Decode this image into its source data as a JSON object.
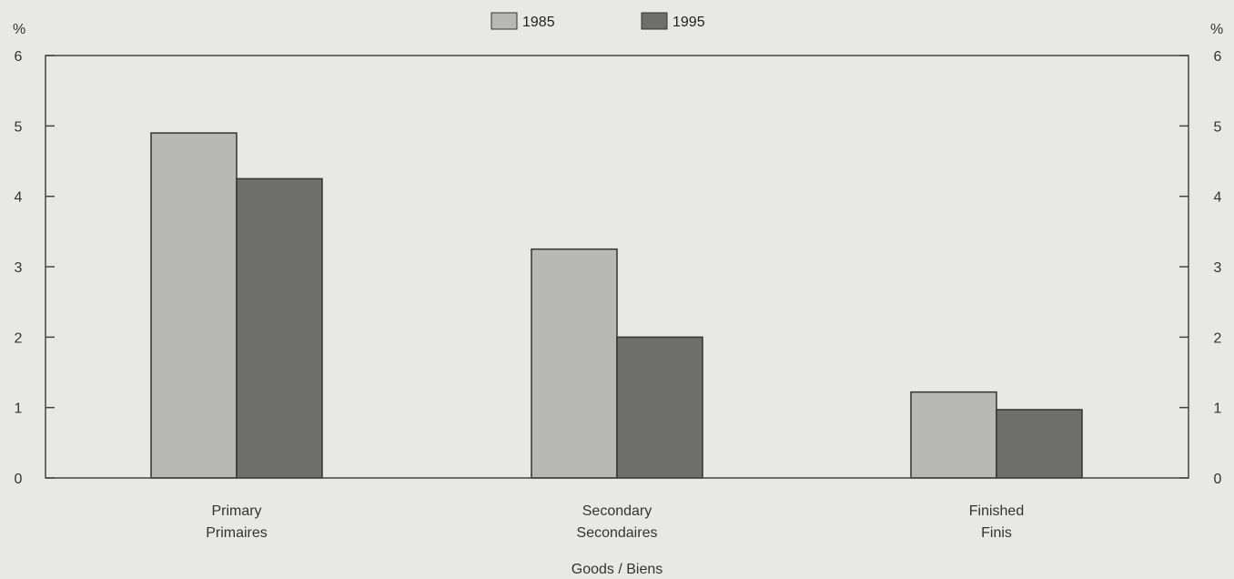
{
  "chart_data": {
    "type": "bar",
    "categories": [
      {
        "line1": "Primary",
        "line2": "Primaires"
      },
      {
        "line1": "Secondary",
        "line2": "Secondaires"
      },
      {
        "line1": "Finished",
        "line2": "Finis"
      }
    ],
    "series": [
      {
        "name": "1985",
        "color": "#b8b8b6",
        "values": [
          4.9,
          3.25,
          1.22
        ]
      },
      {
        "name": "1995",
        "color": "#6e6e6c",
        "values": [
          4.25,
          2.0,
          0.97
        ]
      }
    ],
    "xlabel": "Goods / Biens",
    "ylabel_left": "%",
    "ylabel_right": "%",
    "ylim": [
      0,
      6
    ],
    "yticks": [
      0,
      1,
      2,
      3,
      4,
      5,
      6
    ],
    "grid": false,
    "legend_position": "top-center"
  },
  "colors": {
    "background": "#e8e8e6",
    "axis": "#444444"
  }
}
